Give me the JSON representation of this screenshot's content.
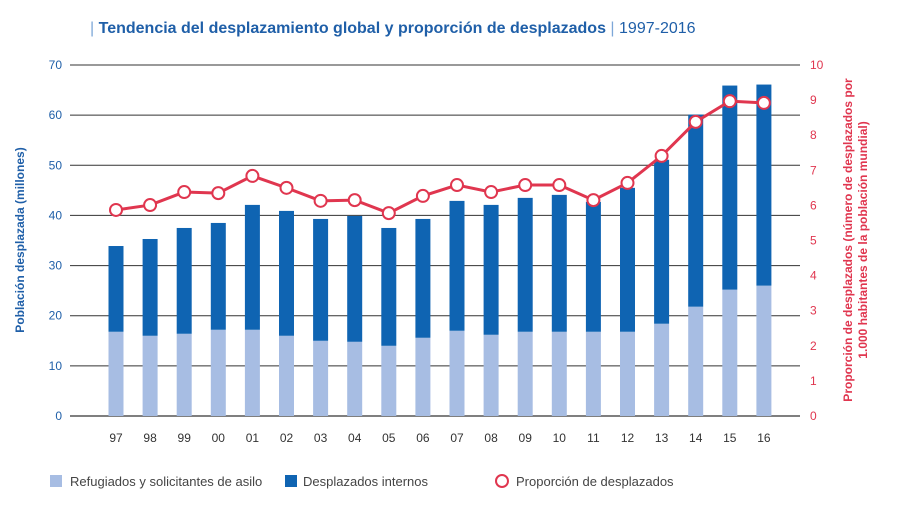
{
  "chart_data": {
    "type": "bar",
    "title": "Tendencia del desplazamiento global y proporción de desplazados",
    "subtitle": "1997-2016",
    "categories": [
      "97",
      "98",
      "99",
      "00",
      "01",
      "02",
      "03",
      "04",
      "05",
      "06",
      "07",
      "08",
      "09",
      "10",
      "11",
      "12",
      "13",
      "14",
      "15",
      "16"
    ],
    "ylabel": "Población desplazada (millones)",
    "ylim": [
      0,
      70
    ],
    "yticks": [
      0,
      10,
      20,
      30,
      40,
      50,
      60,
      70
    ],
    "y2label_line1": "Proporción de desplazados (número de desplazados por",
    "y2label_line2": "1.000 habitantes de la población mundial)",
    "y2lim": [
      0,
      10
    ],
    "y2ticks": [
      0,
      1,
      2,
      3,
      4,
      5,
      6,
      7,
      8,
      9,
      10
    ],
    "grid": true,
    "legend_position": "bottom",
    "series": [
      {
        "name": "Refugiados y solicitantes de asilo",
        "kind": "stacked-bar",
        "axis": "left",
        "color": "#a7bde3",
        "values": [
          16.8,
          16.0,
          16.4,
          17.2,
          17.2,
          16.0,
          15.0,
          14.8,
          14.0,
          15.6,
          17.0,
          16.2,
          16.8,
          16.8,
          16.8,
          16.8,
          18.4,
          21.8,
          25.2,
          26.0
        ]
      },
      {
        "name": "Desplazados internos",
        "kind": "stacked-bar",
        "axis": "left",
        "color": "#0f64b2",
        "values": [
          17.1,
          19.3,
          21.1,
          21.3,
          24.9,
          24.9,
          24.3,
          25.1,
          23.5,
          23.7,
          25.9,
          25.9,
          26.7,
          27.3,
          25.9,
          28.7,
          32.7,
          38.3,
          40.7,
          40.1
        ]
      },
      {
        "name": "Proporción de desplazados",
        "kind": "line",
        "axis": "right",
        "color": "#e0364f",
        "values": [
          5.87,
          6.01,
          6.38,
          6.35,
          6.84,
          6.5,
          6.13,
          6.15,
          5.78,
          6.27,
          6.58,
          6.38,
          6.58,
          6.58,
          6.15,
          6.64,
          7.41,
          8.38,
          8.97,
          8.92
        ]
      }
    ]
  }
}
